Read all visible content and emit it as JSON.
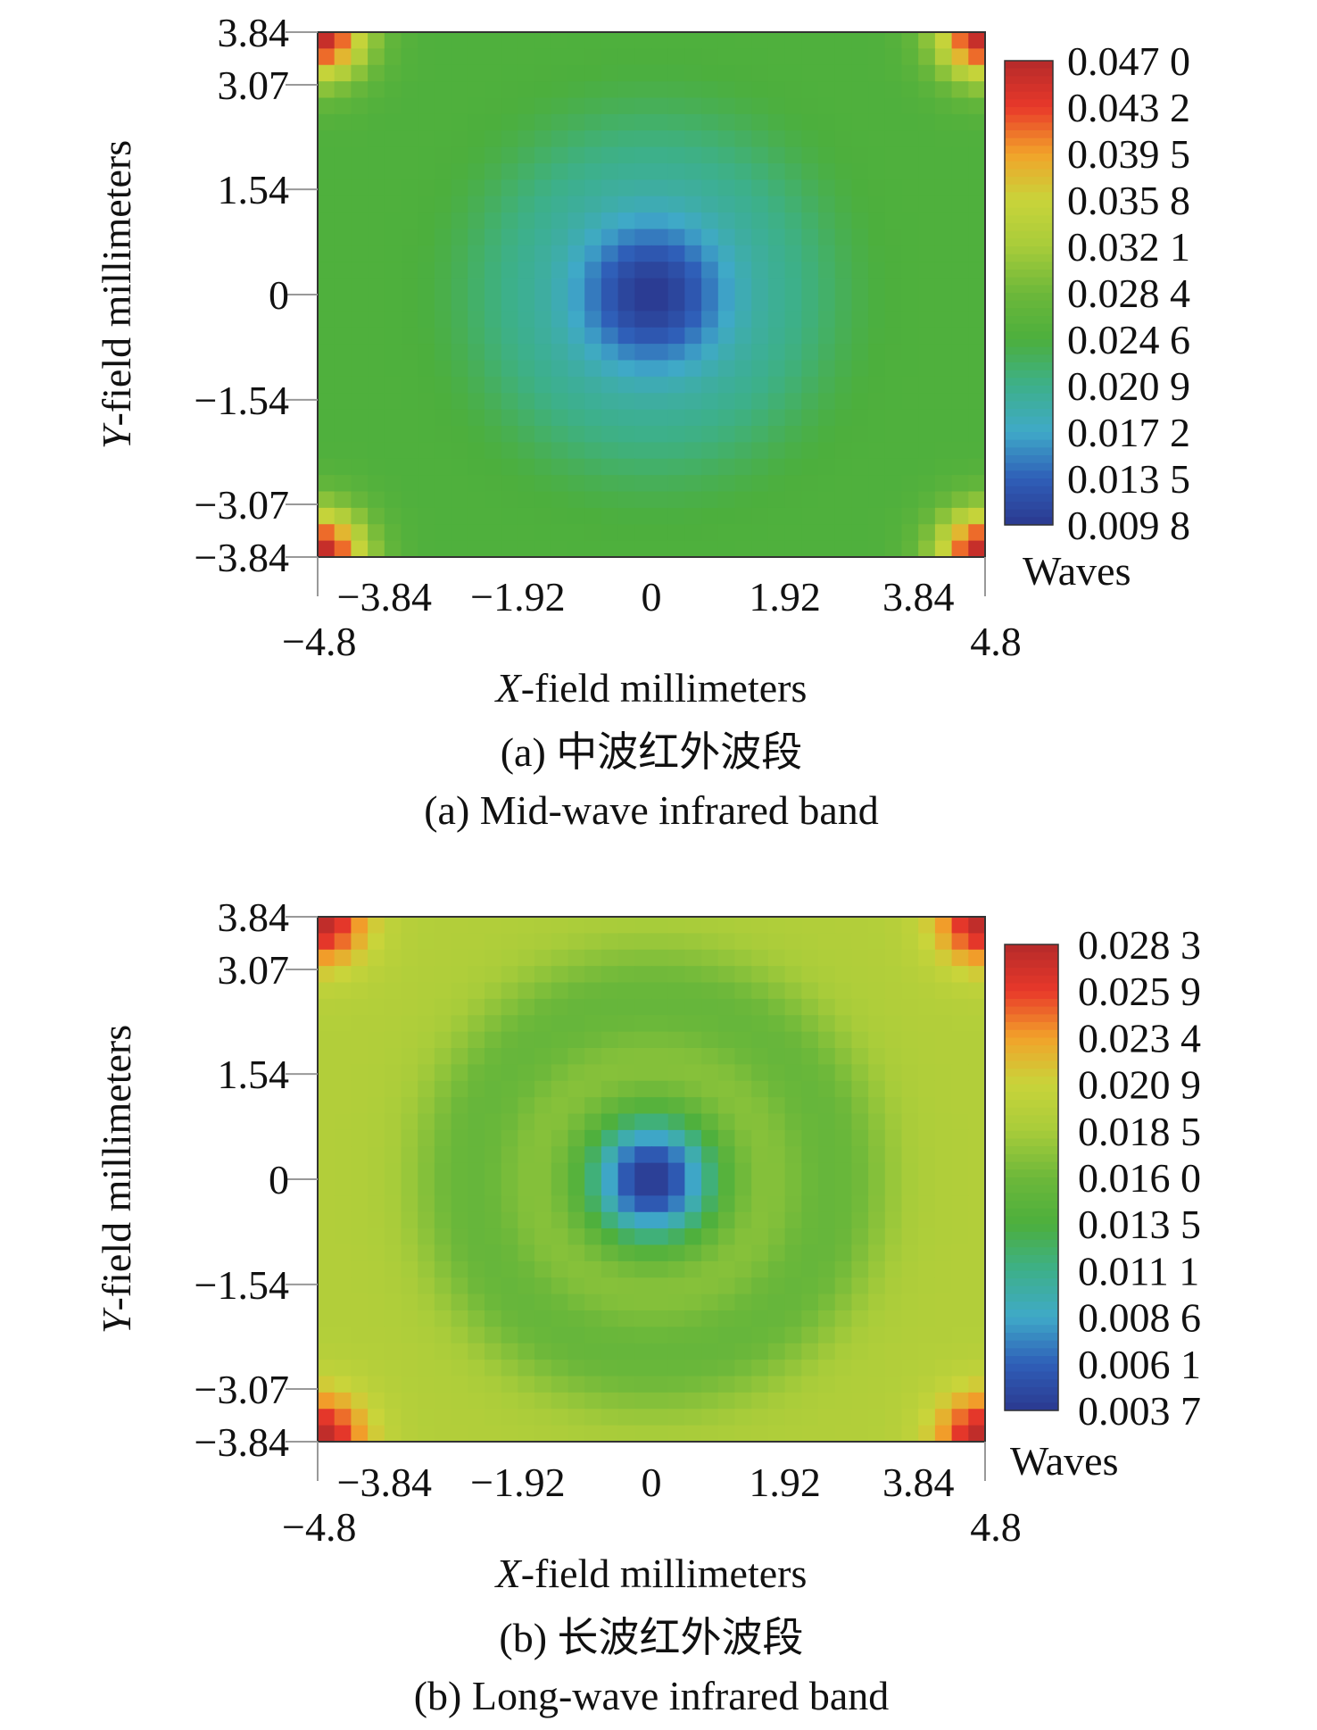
{
  "chart_data": [
    {
      "type": "heatmap",
      "id": "a",
      "caption_cn": "(a) 中波红外波段",
      "caption_en": "(a) Mid-wave infrared band",
      "xlabel_var": "X",
      "xlabel_rest": "-field millimeters",
      "ylabel_var": "Y",
      "ylabel_rest": "-field millimeters",
      "x_ticks": [
        "−3.84",
        "−1.92",
        "0",
        "1.92",
        "3.84"
      ],
      "x_tick_values": [
        -3.84,
        -1.92,
        0,
        1.92,
        3.84
      ],
      "x_edge_ticks": [
        "−4.8",
        "4.8"
      ],
      "x_edge_values": [
        -4.8,
        4.8
      ],
      "y_ticks": [
        "3.84",
        "3.07",
        "1.54",
        "0",
        "−1.54",
        "−3.07",
        "−3.84"
      ],
      "y_tick_values": [
        3.84,
        3.07,
        1.54,
        0,
        -1.54,
        -3.07,
        -3.84
      ],
      "xlim": [
        -4.8,
        4.8
      ],
      "ylim": [
        -3.84,
        3.84
      ],
      "colorbar_unit": "Waves",
      "colorbar_labels": [
        "0.047 0",
        "0.043 2",
        "0.039 5",
        "0.035 8",
        "0.032 1",
        "0.028 4",
        "0.024 6",
        "0.020 9",
        "0.017 2",
        "0.013 5",
        "0.009 8"
      ],
      "value_range": [
        0.0098,
        0.047
      ],
      "field_model": {
        "background": 0.025,
        "center_value": 0.0098,
        "center_radius_mm": 1.3,
        "ring_value": 0.022,
        "ring_radius_mm": 2.0,
        "corner_peak": 0.047,
        "corner_radius_mm": 1.0
      }
    },
    {
      "type": "heatmap",
      "id": "b",
      "caption_cn": "(b) 长波红外波段",
      "caption_en": "(b) Long-wave infrared band",
      "xlabel_var": "X",
      "xlabel_rest": "-field millimeters",
      "ylabel_var": "Y",
      "ylabel_rest": "-field millimeters",
      "x_ticks": [
        "−3.84",
        "−1.92",
        "0",
        "1.92",
        "3.84"
      ],
      "x_tick_values": [
        -3.84,
        -1.92,
        0,
        1.92,
        3.84
      ],
      "x_edge_ticks": [
        "−4.8",
        "4.8"
      ],
      "x_edge_values": [
        -4.8,
        4.8
      ],
      "y_ticks": [
        "3.84",
        "3.07",
        "1.54",
        "0",
        "−1.54",
        "−3.07",
        "−3.84"
      ],
      "y_tick_values": [
        3.84,
        3.07,
        1.54,
        0,
        -1.54,
        -3.07,
        -3.84
      ],
      "xlim": [
        -4.8,
        4.8
      ],
      "ylim": [
        -3.84,
        3.84
      ],
      "colorbar_unit": "Waves",
      "colorbar_labels": [
        "0.028 3",
        "0.025 9",
        "0.023 4",
        "0.020 9",
        "0.018 5",
        "0.016 0",
        "0.013 5",
        "0.011 1",
        "0.008 6",
        "0.006 1",
        "0.003 7"
      ],
      "value_range": [
        0.0037,
        0.0283
      ],
      "field_model": {
        "background": 0.0192,
        "center_value": 0.0037,
        "center_radius_mm": 1.0,
        "ring_value": 0.0155,
        "ring_radius_mm": 2.6,
        "corner_peak": 0.0283,
        "corner_radius_mm": 1.0
      }
    }
  ],
  "colormap": [
    "#2b3990",
    "#2f5fb8",
    "#3fa9c8",
    "#3db08a",
    "#4caf3d",
    "#6db83a",
    "#a8cc3a",
    "#c9d43a",
    "#f2a22a",
    "#e8382a",
    "#b52a2a"
  ]
}
